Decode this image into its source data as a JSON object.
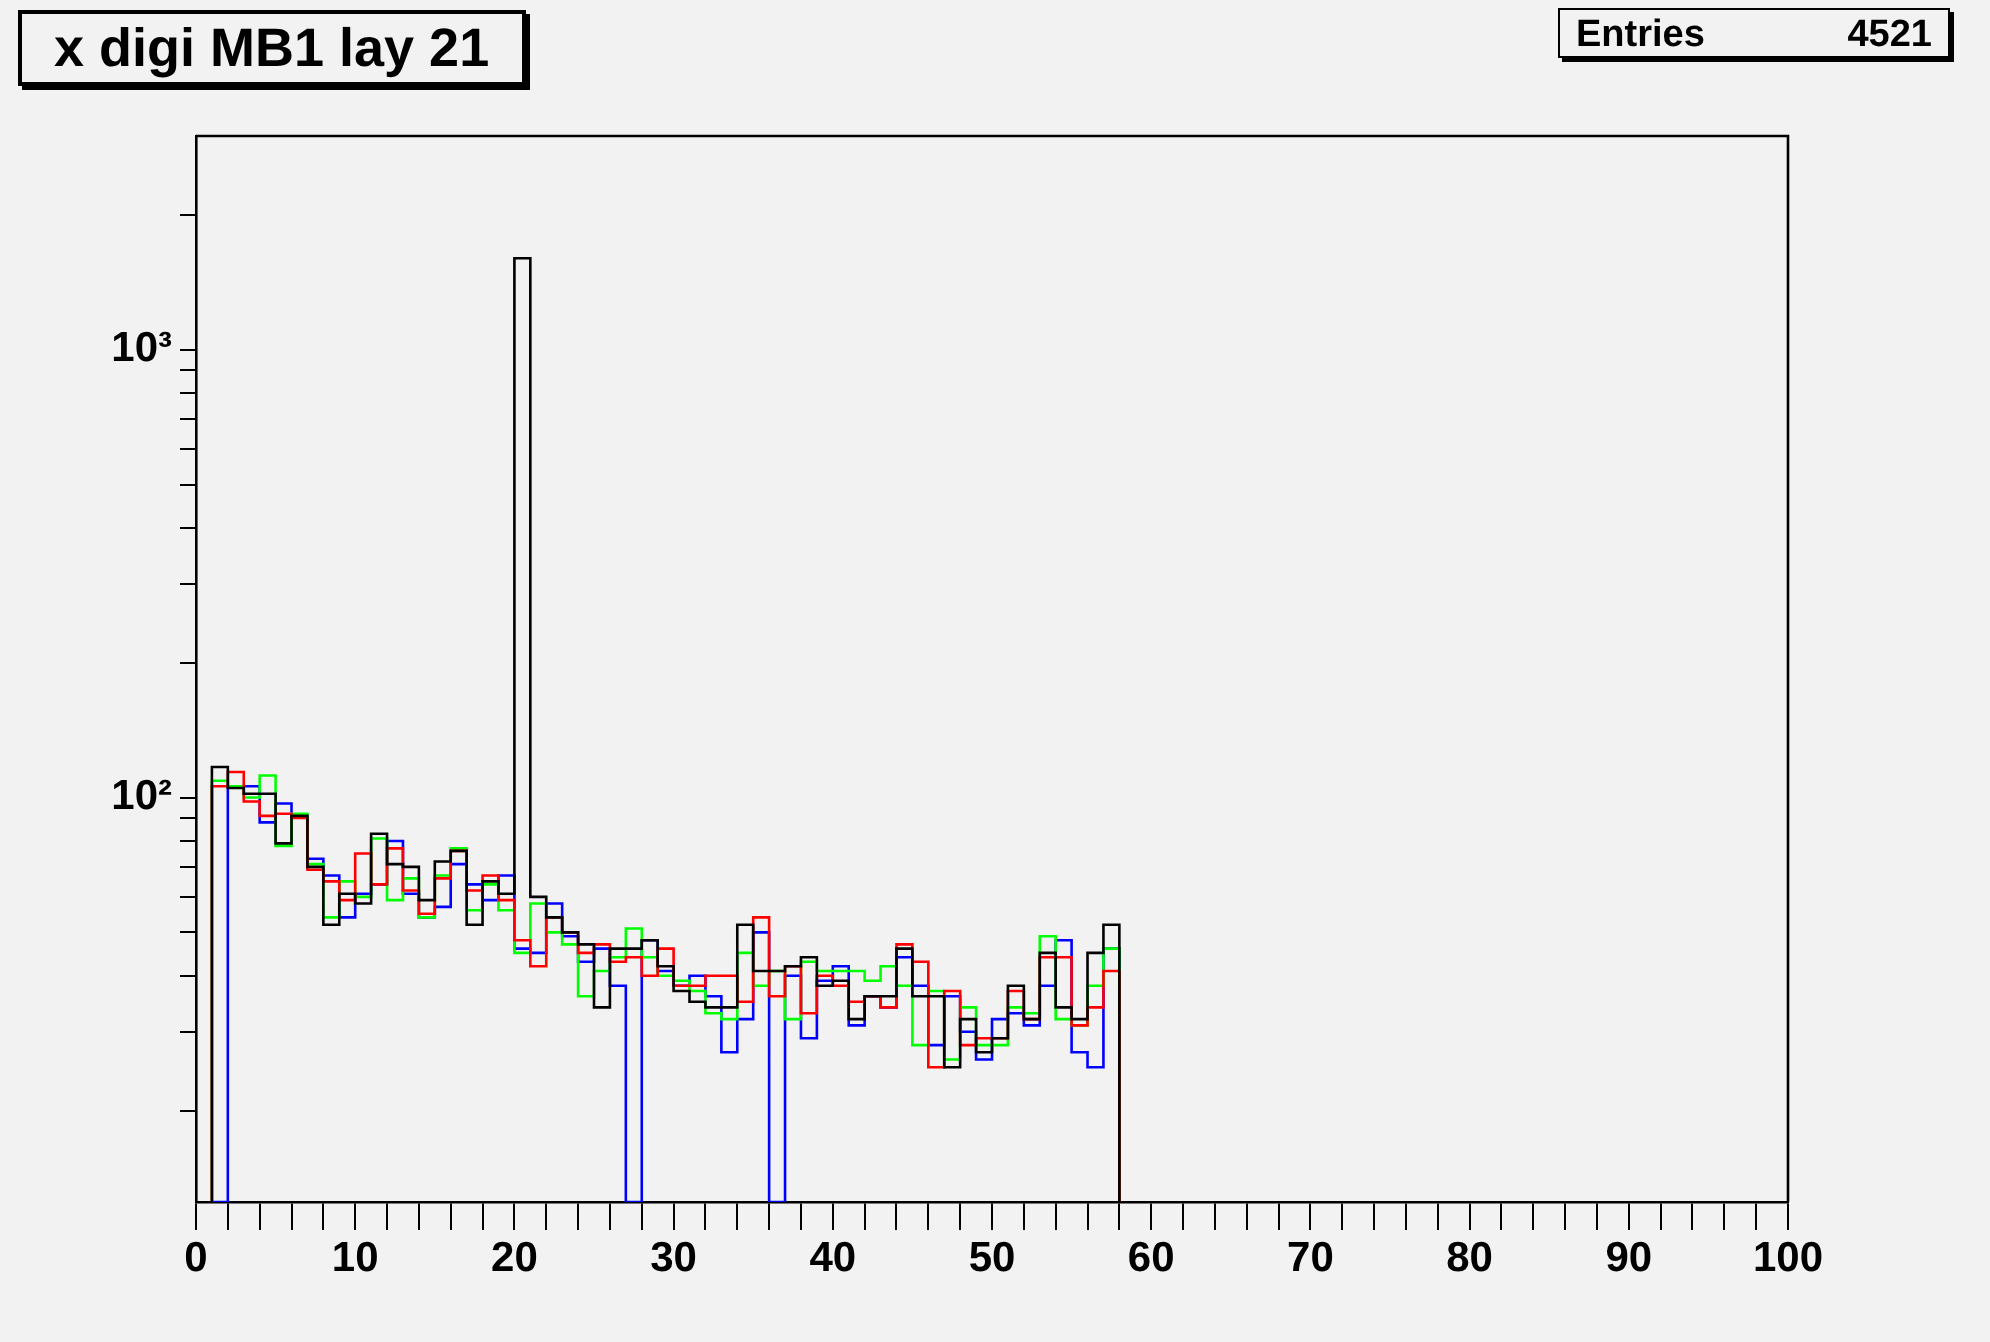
{
  "chart_data": {
    "type": "histogram",
    "title": "x digi MB1 lay 21",
    "annotations": [
      "Entries 4521"
    ],
    "bins": [
      1,
      2,
      3,
      4,
      5,
      6,
      7,
      8,
      9,
      10,
      11,
      12,
      13,
      14,
      15,
      16,
      17,
      18,
      19,
      20,
      21,
      22,
      23,
      24,
      25,
      26,
      27,
      28,
      29,
      30,
      31,
      32,
      33,
      34,
      35,
      36,
      37,
      38,
      39,
      40,
      41,
      42,
      43,
      44,
      45,
      46,
      47,
      48,
      49,
      50,
      51,
      52,
      53,
      54,
      55,
      56,
      57,
      58
    ],
    "series": [
      {
        "color": "#000000",
        "values": [
          117,
          105,
          102,
          102,
          79,
          91,
          70,
          52,
          61,
          58,
          83,
          71,
          70,
          59,
          72,
          76,
          52,
          65,
          61,
          1600,
          60,
          54,
          50,
          47,
          34,
          46,
          46,
          48,
          42,
          37,
          35,
          34,
          34,
          52,
          41,
          41,
          42,
          44,
          38,
          39,
          32,
          36,
          36,
          46,
          36,
          36,
          25,
          32,
          27,
          29,
          38,
          32,
          45,
          34,
          32,
          45,
          52
        ]
      },
      {
        "color": "#ff0000",
        "values": [
          106,
          114,
          98,
          91,
          92,
          90,
          69,
          65,
          59,
          75,
          64,
          77,
          62,
          55,
          66,
          76,
          62,
          67,
          59,
          48,
          42,
          54,
          50,
          45,
          47,
          43,
          44,
          40,
          46,
          38,
          38,
          40,
          40,
          35,
          54,
          36,
          42,
          33,
          40,
          38,
          35,
          36,
          34,
          47,
          43,
          25,
          37,
          28,
          29,
          29,
          37,
          32,
          44,
          44,
          31,
          34,
          41
        ]
      },
      {
        "color": "#00ff00",
        "values": [
          109,
          106,
          100,
          112,
          78,
          92,
          71,
          54,
          65,
          60,
          81,
          59,
          66,
          54,
          67,
          77,
          56,
          64,
          56,
          45,
          58,
          50,
          47,
          36,
          41,
          44,
          51,
          44,
          40,
          39,
          37,
          33,
          32,
          45,
          38,
          41,
          32,
          43,
          41,
          41,
          41,
          39,
          42,
          38,
          28,
          37,
          26,
          34,
          28,
          28,
          34,
          33,
          49,
          32,
          31,
          38,
          46
        ]
      },
      {
        "color": "#0000ff",
        "values": [
          null,
          106,
          106,
          88,
          97,
          91,
          73,
          67,
          54,
          61,
          64,
          80,
          61,
          54,
          57,
          71,
          64,
          59,
          67,
          46,
          45,
          58,
          49,
          43,
          46,
          38,
          null,
          48,
          41,
          38,
          40,
          36,
          27,
          32,
          50,
          null,
          40,
          29,
          39,
          42,
          31,
          36,
          34,
          44,
          38,
          28,
          36,
          30,
          26,
          32,
          33,
          31,
          38,
          48,
          27,
          25,
          46
        ]
      }
    ],
    "xlim": [
      0,
      100
    ],
    "xticks": [
      0,
      {
        "value": 2,
        "label": null
      },
      {
        "value": 4,
        "label": null
      },
      {
        "value": 6,
        "label": null
      },
      {
        "value": 8,
        "label": null
      },
      10,
      {
        "value": 12,
        "label": null
      },
      {
        "value": 14,
        "label": null
      },
      {
        "value": 16,
        "label": null
      },
      {
        "value": 18,
        "label": null
      },
      20,
      {
        "value": 22,
        "label": null
      },
      {
        "value": 24,
        "label": null
      },
      {
        "value": 26,
        "label": null
      },
      {
        "value": 28,
        "label": null
      },
      30,
      {
        "value": 32,
        "label": null
      },
      {
        "value": 34,
        "label": null
      },
      {
        "value": 36,
        "label": null
      },
      {
        "value": 38,
        "label": null
      },
      40,
      {
        "value": 42,
        "label": null
      },
      {
        "value": 44,
        "label": null
      },
      {
        "value": 46,
        "label": null
      },
      {
        "value": 48,
        "label": null
      },
      50,
      {
        "value": 52,
        "label": null
      },
      {
        "value": 54,
        "label": null
      },
      {
        "value": 56,
        "label": null
      },
      {
        "value": 58,
        "label": null
      },
      60,
      {
        "value": 62,
        "label": null
      },
      {
        "value": 64,
        "label": null
      },
      {
        "value": 66,
        "label": null
      },
      {
        "value": 68,
        "label": null
      },
      70,
      {
        "value": 72,
        "label": null
      },
      {
        "value": 74,
        "label": null
      },
      {
        "value": 76,
        "label": null
      },
      {
        "value": 78,
        "label": null
      },
      80,
      {
        "value": 82,
        "label": null
      },
      {
        "value": 84,
        "label": null
      },
      {
        "value": 86,
        "label": null
      },
      {
        "value": 88,
        "label": null
      },
      90,
      {
        "value": 92,
        "label": null
      },
      {
        "value": 94,
        "label": null
      },
      {
        "value": 96,
        "label": null
      },
      {
        "value": 98,
        "label": null
      },
      100
    ],
    "log": true,
    "ylim": [
      12.5,
      3000
    ],
    "yticks": [
      {
        "value": 20,
        "label": null
      },
      {
        "value": 30,
        "label": null
      },
      {
        "value": 40,
        "label": null
      },
      {
        "value": 50,
        "label": null
      },
      {
        "value": 60,
        "label": null
      },
      {
        "value": 70,
        "label": null
      },
      {
        "value": 80,
        "label": null
      },
      {
        "value": 90,
        "label": null
      },
      {
        "value": 100,
        "label": "10²"
      },
      {
        "value": 200,
        "label": null
      },
      {
        "value": 300,
        "label": null
      },
      {
        "value": 400,
        "label": null
      },
      {
        "value": 500,
        "label": null
      },
      {
        "value": 600,
        "label": null
      },
      {
        "value": 700,
        "label": null
      },
      {
        "value": 800,
        "label": null
      },
      {
        "value": 900,
        "label": null
      },
      {
        "value": 1000,
        "label": "10³"
      },
      {
        "value": 2000,
        "label": null
      }
    ]
  }
}
